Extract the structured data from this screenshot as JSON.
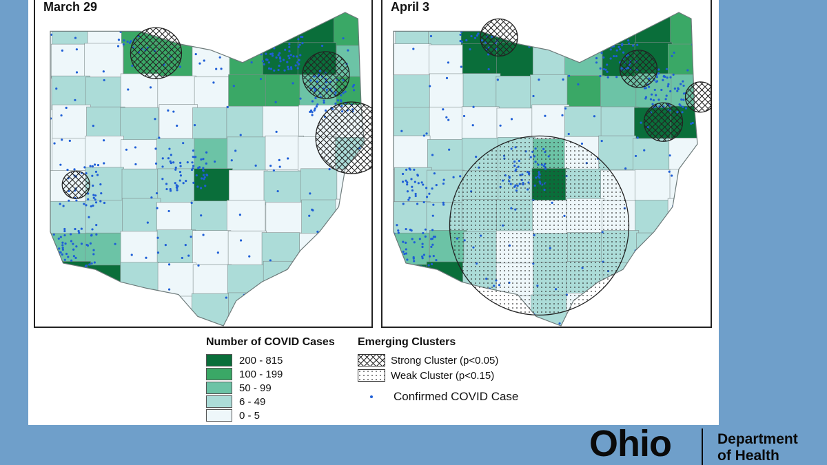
{
  "maps": [
    {
      "title": "March 29"
    },
    {
      "title": "April 3"
    }
  ],
  "legend": {
    "cases_title": "Number of COVID Cases",
    "case_bins": [
      {
        "label": "200 - 815",
        "color": "#0a6e3a"
      },
      {
        "label": "100 - 199",
        "color": "#3aa866"
      },
      {
        "label": "50 - 99",
        "color": "#6cc3a6"
      },
      {
        "label": "6 - 49",
        "color": "#acdcd8"
      },
      {
        "label": "0 - 5",
        "color": "#eef7fa"
      }
    ],
    "clusters_title": "Emerging Clusters",
    "strong_label": "Strong Cluster (p<0.05)",
    "weak_label": "Weak Cluster (p<0.15)",
    "case_dot_label": "Confirmed COVID Case",
    "case_dot_color": "#1f5fd6"
  },
  "logo": {
    "wordmark": "Ohio",
    "dept_line1": "Department",
    "dept_line2": "of Health"
  }
}
